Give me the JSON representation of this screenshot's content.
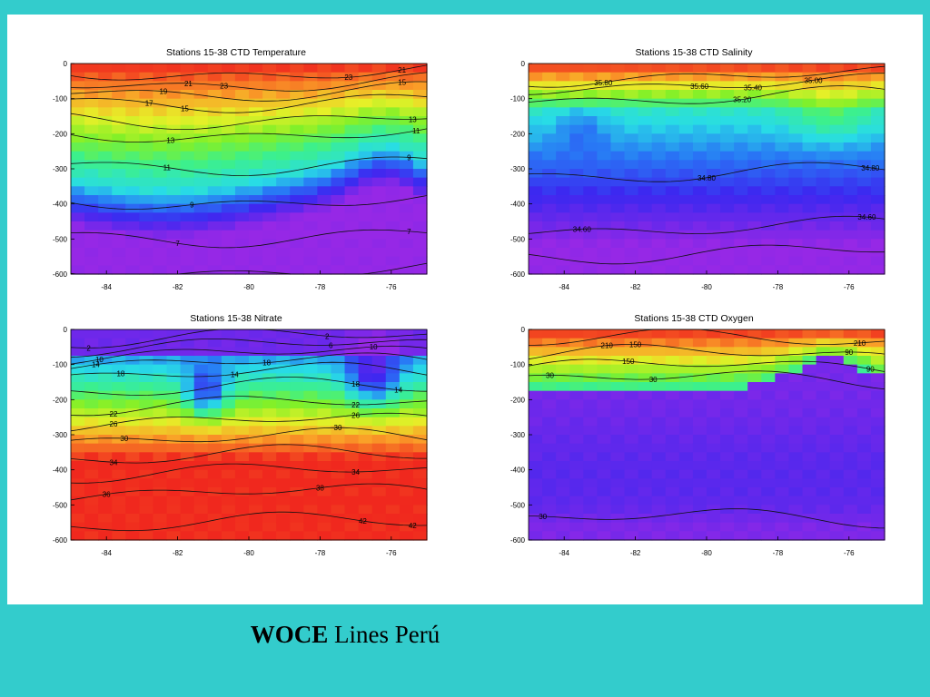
{
  "caption": {
    "bold": "WOCE",
    "rest": " Lines Perú"
  },
  "colors": {
    "background": "#33cccc",
    "panel": "#ffffff"
  },
  "chart_data": [
    {
      "type": "heatmap",
      "title": "Stations 15-38  CTD Temperature",
      "x_ticks": [
        "-84",
        "-82",
        "-80",
        "-78",
        "-76"
      ],
      "y_ticks": [
        "0",
        "-100",
        "-200",
        "-300",
        "-400",
        "-500",
        "-600"
      ],
      "xlim": [
        -85,
        -75
      ],
      "ylim": [
        -600,
        0
      ],
      "contour_labels": [
        "23",
        "21",
        "23",
        "21",
        "19",
        "17",
        "15",
        "15",
        "13",
        "13",
        "11",
        "11",
        "9",
        "9",
        "7",
        "7"
      ],
      "colormap": "rainbow: warm (red) at surface to cold (blue/purple) at depth"
    },
    {
      "type": "heatmap",
      "title": "Stations 15-38  CTD Salinity",
      "x_ticks": [
        "-84",
        "-82",
        "-80",
        "-78",
        "-76"
      ],
      "y_ticks": [
        "0",
        "-100",
        "-200",
        "-300",
        "-400",
        "-500",
        "-600"
      ],
      "xlim": [
        -85,
        -75
      ],
      "ylim": [
        -600,
        0
      ],
      "contour_labels": [
        "35.80",
        "35.60",
        "35.40",
        "35.20",
        "35.00",
        "34.80",
        "34.80",
        "34.60",
        "34.60"
      ],
      "colormap": "rainbow: high salinity (red) at surface to low (purple) at depth"
    },
    {
      "type": "heatmap",
      "title": "Stations 15-38  Nitrate",
      "x_ticks": [
        "-84",
        "-82",
        "-80",
        "-78",
        "-76"
      ],
      "y_ticks": [
        "0",
        "-100",
        "-200",
        "-300",
        "-400",
        "-500",
        "-600"
      ],
      "xlim": [
        -85,
        -75
      ],
      "ylim": [
        -600,
        0
      ],
      "contour_labels": [
        "2",
        "2",
        "6",
        "10",
        "10",
        "14",
        "14",
        "14",
        "18",
        "18",
        "18",
        "22",
        "22",
        "26",
        "26",
        "30",
        "30",
        "34",
        "34",
        "36",
        "38",
        "42",
        "42"
      ],
      "colormap": "rainbow: low nitrate (purple) at surface to high (red) at depth"
    },
    {
      "type": "heatmap",
      "title": "Stations 15-38  CTD Oxygen",
      "x_ticks": [
        "-84",
        "-82",
        "-80",
        "-78",
        "-76"
      ],
      "y_ticks": [
        "0",
        "-100",
        "-200",
        "-300",
        "-400",
        "-500",
        "-600"
      ],
      "xlim": [
        -85,
        -75
      ],
      "ylim": [
        -600,
        0
      ],
      "contour_labels": [
        "210",
        "210",
        "150",
        "150",
        "90",
        "90",
        "30",
        "30",
        "30"
      ],
      "colormap": "rainbow: high oxygen (red) at surface to low (purple) at depth"
    }
  ]
}
